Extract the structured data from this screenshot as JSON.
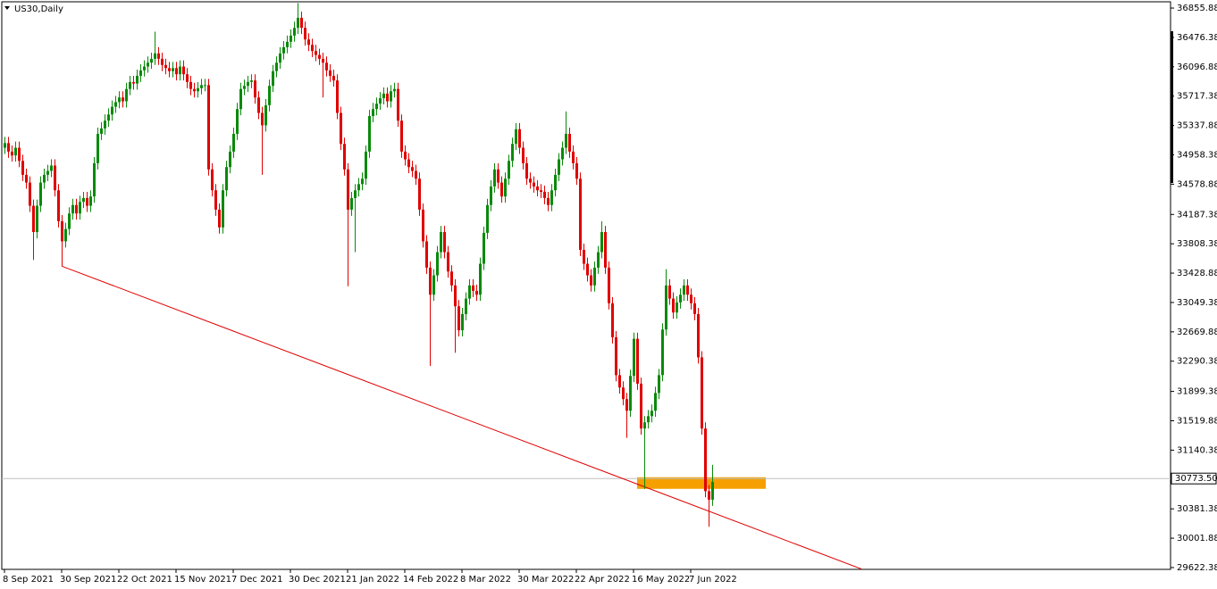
{
  "chart_data": {
    "type": "candlestick",
    "title": "US30,Daily",
    "up_color": "#0a8a0a",
    "down_color": "#e00000",
    "ylim": [
      29599,
      36937
    ],
    "yticks": [
      {
        "value": 36855.88,
        "label": "36855.88"
      },
      {
        "value": 36476.38,
        "label": "36476.38"
      },
      {
        "value": 36096.88,
        "label": "36096.88"
      },
      {
        "value": 35717.38,
        "label": "35717.38"
      },
      {
        "value": 35337.88,
        "label": "35337.88"
      },
      {
        "value": 34958.38,
        "label": "34958.38"
      },
      {
        "value": 34578.88,
        "label": "34578.88"
      },
      {
        "value": 34187.38,
        "label": "34187.38"
      },
      {
        "value": 33808.38,
        "label": "33808.38"
      },
      {
        "value": 33428.88,
        "label": "33428.88"
      },
      {
        "value": 33049.38,
        "label": "33049.38"
      },
      {
        "value": 32669.88,
        "label": "32669.88"
      },
      {
        "value": 32290.38,
        "label": "32290.38"
      },
      {
        "value": 31899.38,
        "label": "31899.38"
      },
      {
        "value": 31519.88,
        "label": "31519.88"
      },
      {
        "value": 31140.38,
        "label": "31140.38"
      },
      {
        "value": 30381.38,
        "label": "30381.38"
      },
      {
        "value": 30001.88,
        "label": "30001.88"
      },
      {
        "value": 29622.38,
        "label": "29622.38"
      }
    ],
    "xticks": [
      {
        "value": 0,
        "label": "8 Sep 2021"
      },
      {
        "value": 16,
        "label": "30 Sep 2021"
      },
      {
        "value": 32,
        "label": "22 Oct 2021"
      },
      {
        "value": 48,
        "label": "15 Nov 2021"
      },
      {
        "value": 64,
        "label": "7 Dec 2021"
      },
      {
        "value": 80,
        "label": "30 Dec 2021"
      },
      {
        "value": 96,
        "label": "21 Jan 2022"
      },
      {
        "value": 112,
        "label": "14 Feb 2022"
      },
      {
        "value": 128,
        "label": "8 Mar 2022"
      },
      {
        "value": 144,
        "label": "30 Mar 2022"
      },
      {
        "value": 160,
        "label": "22 Apr 2022"
      },
      {
        "value": 176,
        "label": "16 May 2022"
      },
      {
        "value": 192,
        "label": "7 Jun 2022"
      }
    ],
    "current_price": {
      "value": 30773.5,
      "label": "30773.50"
    },
    "trendline": {
      "from": {
        "bar": 16,
        "price": 33520
      },
      "to": {
        "bar": 240,
        "price": 29600
      },
      "color": "#e00000"
    },
    "zone": {
      "from_bar": 177,
      "to_bar": 213,
      "top": 30790,
      "bottom": 30640,
      "color": "#f5a000"
    },
    "candles": [
      [
        35050,
        35190,
        34970,
        35110
      ],
      [
        35110,
        35190,
        34920,
        35000
      ],
      [
        35000,
        35080,
        34870,
        34950
      ],
      [
        34950,
        35130,
        34870,
        35050
      ],
      [
        35050,
        35130,
        34800,
        34880
      ],
      [
        34880,
        34960,
        34620,
        34700
      ],
      [
        34700,
        34780,
        34520,
        34600
      ],
      [
        34600,
        34680,
        34220,
        34300
      ],
      [
        34300,
        34380,
        33600,
        33960
      ],
      [
        33960,
        34380,
        33880,
        34300
      ],
      [
        34300,
        34680,
        34220,
        34600
      ],
      [
        34600,
        34780,
        34520,
        34700
      ],
      [
        34700,
        34830,
        34620,
        34750
      ],
      [
        34750,
        34900,
        34670,
        34820
      ],
      [
        34820,
        34900,
        34420,
        34500
      ],
      [
        34500,
        34580,
        34020,
        34100
      ],
      [
        34100,
        34180,
        33520,
        33840
      ],
      [
        33840,
        34080,
        33760,
        34000
      ],
      [
        34000,
        34280,
        33920,
        34200
      ],
      [
        34200,
        34390,
        34120,
        34310
      ],
      [
        34310,
        34390,
        34120,
        34200
      ],
      [
        34200,
        34430,
        34120,
        34350
      ],
      [
        34350,
        34480,
        34270,
        34400
      ],
      [
        34400,
        34480,
        34220,
        34300
      ],
      [
        34300,
        34500,
        34220,
        34420
      ],
      [
        34420,
        34930,
        34340,
        34850
      ],
      [
        34850,
        35310,
        34770,
        35230
      ],
      [
        35230,
        35380,
        35150,
        35300
      ],
      [
        35300,
        35480,
        35220,
        35400
      ],
      [
        35400,
        35560,
        35320,
        35480
      ],
      [
        35480,
        35660,
        35400,
        35580
      ],
      [
        35580,
        35720,
        35500,
        35640
      ],
      [
        35640,
        35780,
        35560,
        35700
      ],
      [
        35700,
        35780,
        35570,
        35650
      ],
      [
        35650,
        35890,
        35570,
        35810
      ],
      [
        35810,
        35980,
        35730,
        35900
      ],
      [
        35900,
        35980,
        35800,
        35880
      ],
      [
        35880,
        36060,
        35800,
        35980
      ],
      [
        35980,
        36130,
        35900,
        36050
      ],
      [
        36050,
        36180,
        35970,
        36100
      ],
      [
        36100,
        36230,
        36020,
        36150
      ],
      [
        36150,
        36280,
        36070,
        36200
      ],
      [
        36200,
        36550,
        36120,
        36270
      ],
      [
        36270,
        36350,
        36120,
        36200
      ],
      [
        36200,
        36280,
        36040,
        36120
      ],
      [
        36120,
        36200,
        36000,
        36080
      ],
      [
        36080,
        36160,
        35960,
        36040
      ],
      [
        36040,
        36160,
        35960,
        36080
      ],
      [
        36080,
        36160,
        35920,
        36000
      ],
      [
        36000,
        36180,
        35920,
        36100
      ],
      [
        36100,
        36180,
        35920,
        36000
      ],
      [
        36000,
        36080,
        35820,
        35900
      ],
      [
        35900,
        35980,
        35730,
        35810
      ],
      [
        35810,
        35890,
        35700,
        35780
      ],
      [
        35780,
        35900,
        35700,
        35820
      ],
      [
        35820,
        35940,
        35740,
        35860
      ],
      [
        35860,
        35940,
        35780,
        35860
      ],
      [
        35860,
        35940,
        34690,
        34770
      ],
      [
        34770,
        34850,
        34420,
        34500
      ],
      [
        34500,
        34580,
        34170,
        34250
      ],
      [
        34250,
        34330,
        33940,
        34020
      ],
      [
        34020,
        34580,
        33940,
        34500
      ],
      [
        34500,
        34880,
        34420,
        34800
      ],
      [
        34800,
        35080,
        34720,
        35000
      ],
      [
        35000,
        35310,
        34920,
        35230
      ],
      [
        35230,
        35630,
        35150,
        35550
      ],
      [
        35550,
        35890,
        35470,
        35810
      ],
      [
        35810,
        35930,
        35730,
        35850
      ],
      [
        35850,
        35980,
        35770,
        35900
      ],
      [
        35900,
        36000,
        35820,
        35920
      ],
      [
        35920,
        36000,
        35620,
        35700
      ],
      [
        35700,
        35780,
        35420,
        35500
      ],
      [
        35500,
        35580,
        34700,
        35340
      ],
      [
        35340,
        35680,
        35260,
        35600
      ],
      [
        35600,
        35930,
        35520,
        35850
      ],
      [
        35850,
        36120,
        35770,
        36040
      ],
      [
        36040,
        36230,
        35960,
        36150
      ],
      [
        36150,
        36350,
        36070,
        36270
      ],
      [
        36270,
        36430,
        36190,
        36350
      ],
      [
        36350,
        36500,
        36270,
        36420
      ],
      [
        36420,
        36580,
        36340,
        36500
      ],
      [
        36500,
        36680,
        36420,
        36600
      ],
      [
        36600,
        36920,
        36520,
        36730
      ],
      [
        36730,
        36810,
        36520,
        36600
      ],
      [
        36600,
        36680,
        36370,
        36450
      ],
      [
        36450,
        36530,
        36300,
        36380
      ],
      [
        36380,
        36460,
        36220,
        36300
      ],
      [
        36300,
        36380,
        36170,
        36250
      ],
      [
        36250,
        36330,
        36120,
        36200
      ],
      [
        36200,
        36280,
        35700,
        36150
      ],
      [
        36150,
        36230,
        35970,
        36050
      ],
      [
        36050,
        36130,
        35900,
        35980
      ],
      [
        35980,
        36060,
        35840,
        35920
      ],
      [
        35920,
        36000,
        35420,
        35500
      ],
      [
        35500,
        35580,
        35020,
        35100
      ],
      [
        35100,
        35180,
        34690,
        34770
      ],
      [
        34770,
        34850,
        33260,
        34250
      ],
      [
        34250,
        34480,
        34170,
        34400
      ],
      [
        34400,
        34580,
        33700,
        34500
      ],
      [
        34500,
        34660,
        34420,
        34580
      ],
      [
        34580,
        34730,
        34500,
        34650
      ],
      [
        34650,
        35080,
        34570,
        35000
      ],
      [
        35000,
        35540,
        34920,
        35460
      ],
      [
        35460,
        35630,
        35380,
        35550
      ],
      [
        35550,
        35700,
        35470,
        35620
      ],
      [
        35620,
        35770,
        35540,
        35690
      ],
      [
        35690,
        35830,
        35610,
        35750
      ],
      [
        35750,
        35830,
        35570,
        35650
      ],
      [
        35650,
        35860,
        35570,
        35780
      ],
      [
        35780,
        35890,
        35700,
        35810
      ],
      [
        35810,
        35890,
        35320,
        35400
      ],
      [
        35400,
        35480,
        34920,
        35000
      ],
      [
        35000,
        35080,
        34820,
        34900
      ],
      [
        34900,
        34980,
        34720,
        34800
      ],
      [
        34800,
        34880,
        34670,
        34750
      ],
      [
        34750,
        34830,
        34570,
        34650
      ],
      [
        34650,
        34730,
        34170,
        34250
      ],
      [
        34250,
        34330,
        33760,
        33840
      ],
      [
        33840,
        33920,
        33420,
        33500
      ],
      [
        33500,
        33580,
        32230,
        33150
      ],
      [
        33150,
        33480,
        33070,
        33400
      ],
      [
        33400,
        33780,
        33320,
        33700
      ],
      [
        33700,
        34040,
        33620,
        33960
      ],
      [
        33960,
        34040,
        33620,
        33700
      ],
      [
        33700,
        33780,
        33370,
        33450
      ],
      [
        33450,
        33530,
        33190,
        33270
      ],
      [
        33270,
        33350,
        32400,
        33000
      ],
      [
        33000,
        33080,
        32610,
        32690
      ],
      [
        32690,
        32980,
        32610,
        32900
      ],
      [
        32900,
        33180,
        32820,
        33100
      ],
      [
        33100,
        33350,
        33020,
        33270
      ],
      [
        33270,
        33350,
        33120,
        33200
      ],
      [
        33200,
        33280,
        33070,
        33150
      ],
      [
        33150,
        33630,
        33070,
        33550
      ],
      [
        33550,
        34030,
        33470,
        33950
      ],
      [
        33950,
        34390,
        33870,
        34310
      ],
      [
        34310,
        34630,
        34230,
        34550
      ],
      [
        34550,
        34850,
        34470,
        34770
      ],
      [
        34770,
        34850,
        34520,
        34600
      ],
      [
        34600,
        34680,
        34340,
        34420
      ],
      [
        34420,
        34730,
        34340,
        34650
      ],
      [
        34650,
        34960,
        34570,
        34880
      ],
      [
        34880,
        35180,
        34800,
        35100
      ],
      [
        35100,
        35370,
        35020,
        35290
      ],
      [
        35290,
        35370,
        34970,
        35050
      ],
      [
        35050,
        35130,
        34770,
        34850
      ],
      [
        34850,
        34930,
        34570,
        34650
      ],
      [
        34650,
        34730,
        34520,
        34600
      ],
      [
        34600,
        34680,
        34470,
        34550
      ],
      [
        34550,
        34630,
        34420,
        34500
      ],
      [
        34500,
        34580,
        34400,
        34480
      ],
      [
        34480,
        34560,
        34320,
        34400
      ],
      [
        34400,
        34480,
        34230,
        34310
      ],
      [
        34310,
        34580,
        34230,
        34500
      ],
      [
        34500,
        34780,
        34420,
        34700
      ],
      [
        34700,
        34980,
        34620,
        34900
      ],
      [
        34900,
        35130,
        34820,
        35050
      ],
      [
        35050,
        35520,
        34970,
        35230
      ],
      [
        35230,
        35310,
        34920,
        35000
      ],
      [
        35000,
        35080,
        34770,
        34850
      ],
      [
        34850,
        34930,
        34570,
        34650
      ],
      [
        34650,
        34730,
        33650,
        33730
      ],
      [
        33730,
        33810,
        33470,
        33550
      ],
      [
        33550,
        33630,
        33320,
        33400
      ],
      [
        33400,
        33480,
        33190,
        33270
      ],
      [
        33270,
        33580,
        33190,
        33500
      ],
      [
        33500,
        33780,
        33420,
        33700
      ],
      [
        33700,
        34100,
        33620,
        33960
      ],
      [
        33960,
        34040,
        33420,
        33500
      ],
      [
        33500,
        33580,
        32960,
        33040
      ],
      [
        33040,
        33120,
        32520,
        32600
      ],
      [
        32600,
        32680,
        32030,
        32110
      ],
      [
        32110,
        32190,
        31870,
        31950
      ],
      [
        31950,
        32030,
        31720,
        31800
      ],
      [
        31800,
        31880,
        31300,
        31650
      ],
      [
        31650,
        32180,
        31570,
        32100
      ],
      [
        32100,
        32660,
        32020,
        32580
      ],
      [
        32580,
        32660,
        31920,
        32000
      ],
      [
        32000,
        32080,
        31340,
        31420
      ],
      [
        31420,
        31580,
        30640,
        31500
      ],
      [
        31500,
        31660,
        31420,
        31580
      ],
      [
        31580,
        31730,
        31500,
        31650
      ],
      [
        31650,
        31960,
        31570,
        31880
      ],
      [
        31880,
        32190,
        31800,
        32110
      ],
      [
        32110,
        32780,
        32030,
        32700
      ],
      [
        32700,
        33480,
        32620,
        33270
      ],
      [
        33270,
        33350,
        33020,
        33100
      ],
      [
        33100,
        33180,
        32840,
        32920
      ],
      [
        32920,
        33130,
        32840,
        33050
      ],
      [
        33050,
        33230,
        32970,
        33150
      ],
      [
        33150,
        33350,
        33070,
        33270
      ],
      [
        33270,
        33350,
        33070,
        33150
      ],
      [
        33150,
        33230,
        32960,
        33040
      ],
      [
        33040,
        33120,
        32820,
        32900
      ],
      [
        32900,
        32980,
        32260,
        32340
      ],
      [
        32340,
        32420,
        31340,
        31420
      ],
      [
        31420,
        31500,
        30530,
        30610
      ],
      [
        30610,
        30690,
        30150,
        30500
      ],
      [
        30500,
        30950,
        30420,
        30730
      ]
    ]
  }
}
